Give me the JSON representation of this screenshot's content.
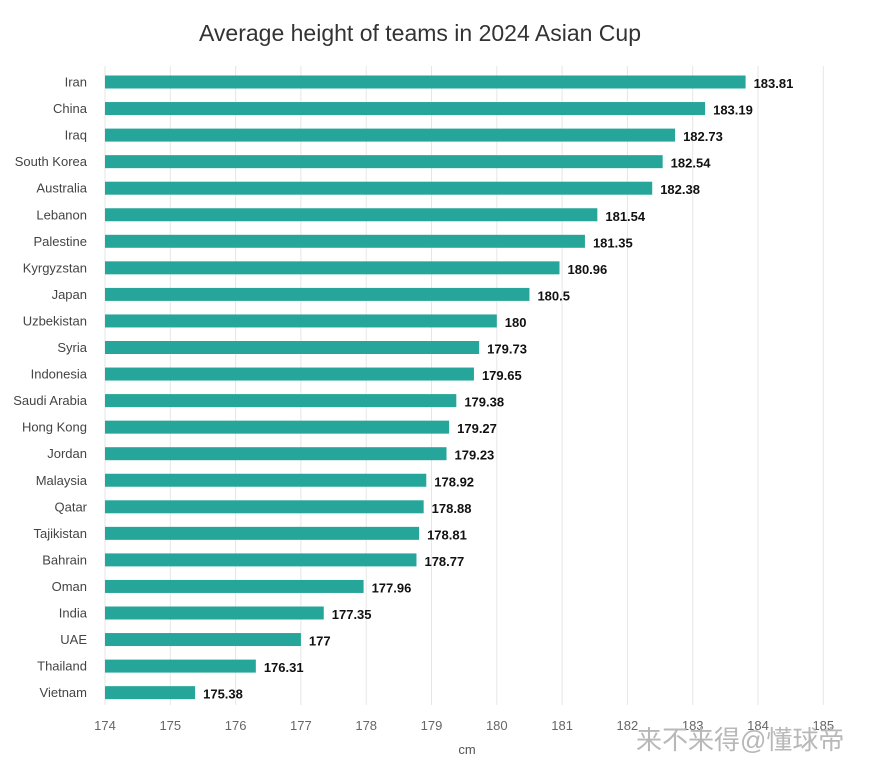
{
  "chart_data": {
    "type": "bar",
    "orientation": "horizontal",
    "title": "Average height of teams in 2024 Asian Cup",
    "xlabel": "cm",
    "ylabel": "",
    "xlim": [
      174,
      185
    ],
    "xticks": [
      174,
      175,
      176,
      177,
      178,
      179,
      180,
      181,
      182,
      183,
      184,
      185
    ],
    "grid": "vertical",
    "bar_color": "#26a69a",
    "categories": [
      "Iran",
      "China",
      "Iraq",
      "South Korea",
      "Australia",
      "Lebanon",
      "Palestine",
      "Kyrgyzstan",
      "Japan",
      "Uzbekistan",
      "Syria",
      "Indonesia",
      "Saudi Arabia",
      "Hong Kong",
      "Jordan",
      "Malaysia",
      "Qatar",
      "Tajikistan",
      "Bahrain",
      "Oman",
      "India",
      "UAE",
      "Thailand",
      "Vietnam"
    ],
    "values": [
      183.81,
      183.19,
      182.73,
      182.54,
      182.38,
      181.54,
      181.35,
      180.96,
      180.5,
      180,
      179.73,
      179.65,
      179.38,
      179.27,
      179.23,
      178.92,
      178.88,
      178.81,
      178.77,
      177.96,
      177.35,
      177,
      176.31,
      175.38
    ],
    "data_labels": [
      "183.81",
      "183.19",
      "182.73",
      "182.54",
      "182.38",
      "181.54",
      "181.35",
      "180.96",
      "180.5",
      "180",
      "179.73",
      "179.65",
      "179.38",
      "179.27",
      "179.23",
      "178.92",
      "178.88",
      "178.81",
      "178.77",
      "177.96",
      "177.35",
      "177",
      "176.31",
      "175.38"
    ]
  },
  "watermark": {
    "text": "来不来得@懂球帝",
    "color": "#b8b8b8"
  }
}
